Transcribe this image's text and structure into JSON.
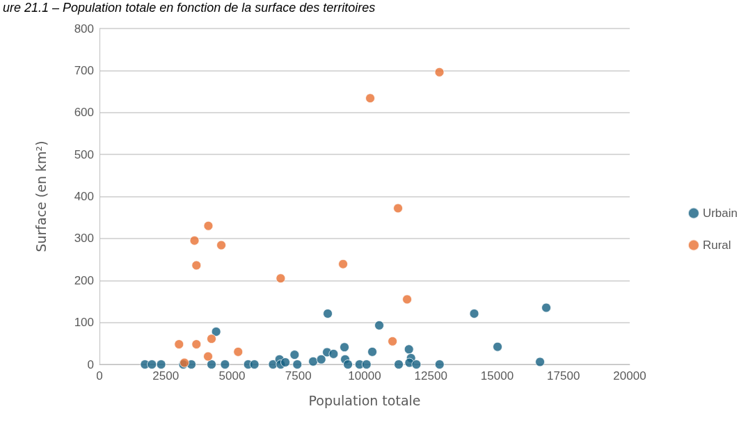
{
  "chart_data": {
    "type": "scatter",
    "title": "ure 21.1 – Population totale en fonction de la surface des territoires",
    "xlabel": "Population totale",
    "ylabel": "Surface (en km²)",
    "xlim": [
      0,
      20000
    ],
    "xticks": [
      0,
      2500,
      5000,
      7500,
      10000,
      12500,
      15000,
      17500,
      20000
    ],
    "ylim": [
      0,
      800
    ],
    "yticks": [
      0,
      100,
      200,
      300,
      400,
      500,
      600,
      700,
      800
    ],
    "grid": "y",
    "legend": "right",
    "marker": "circle",
    "series": [
      {
        "name": "Urbain",
        "color": "#156082",
        "x": [
          1715,
          1977,
          2325,
          3160,
          3465,
          4400,
          4226,
          4734,
          5607,
          5843,
          6545,
          6790,
          6834,
          7009,
          7358,
          7461,
          8059,
          8365,
          8584,
          8829,
          8610,
          9240,
          9266,
          9371,
          9810,
          10072,
          10290,
          10552,
          11287,
          11672,
          11750,
          11690,
          11953,
          12828,
          14134,
          15015,
          16616,
          16852
        ],
        "values": [
          0,
          0,
          0,
          0,
          0,
          78,
          0,
          0,
          0,
          0,
          0,
          12,
          0,
          5,
          23,
          0,
          7,
          12,
          29,
          25,
          121,
          41,
          12,
          0,
          0,
          0,
          30,
          93,
          0,
          36,
          15,
          4,
          0,
          0,
          121,
          42,
          6,
          135
        ]
      },
      {
        "name": "Rural",
        "color": "#e97132",
        "x": [
          3000,
          3202,
          3656,
          4095,
          4226,
          5230,
          6834,
          3656,
          12822,
          10211,
          11261,
          4106,
          3583,
          4594,
          9188,
          11603,
          11053
        ],
        "values": [
          48,
          4,
          48,
          19,
          61,
          30,
          205,
          236,
          696,
          634,
          372,
          330,
          295,
          284,
          239,
          155,
          55
        ]
      }
    ]
  }
}
